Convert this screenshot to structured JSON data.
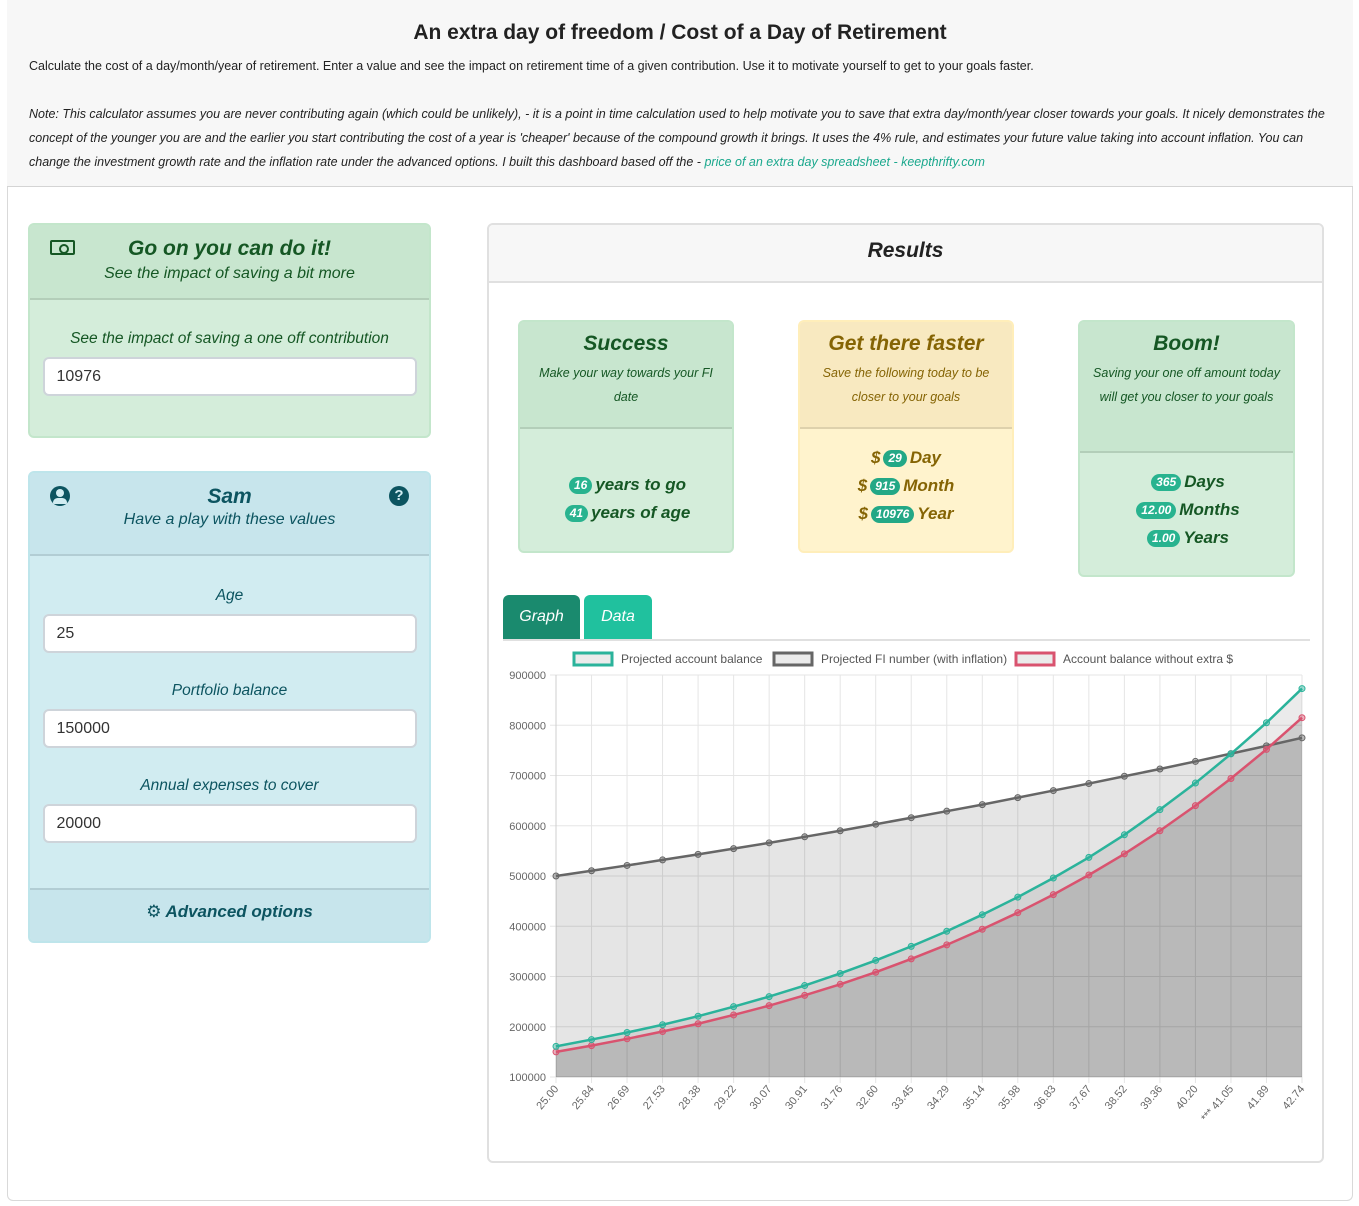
{
  "header": {
    "title": "An extra day of freedom / Cost of a Day of Retirement",
    "intro": "Calculate the cost of a day/month/year of retirement. Enter a value and see the impact on retirement time of a given contribution. Use it to motivate yourself to get to your goals faster.",
    "note": "Note: This calculator assumes you are never contributing again (which could be unlikely), - it is a point in time calculation used to help motivate you to save that extra day/month/year closer towards your goals. It nicely demonstrates the concept of the younger you are and the earlier you start contributing the cost of a year is 'cheaper' because of the compound growth it brings. It uses the 4% rule, and estimates your future value taking into account inflation. You can change the investment growth rate and the inflation rate under the advanced options. I built this dashboard based off the - ",
    "link_text": "price of an extra day spreadsheet - keepthrifty.com"
  },
  "contribution_card": {
    "title": "Go on you can do it!",
    "subtitle": "See the impact of saving a bit more",
    "field_label": "See the impact of saving a one off contribution",
    "field_value": "10976",
    "icon": "money-bill-icon"
  },
  "profile_card": {
    "title": "Sam",
    "subtitle": "Have a play with these values",
    "age_label": "Age",
    "age_value": "25",
    "portfolio_label": "Portfolio balance",
    "portfolio_value": "150000",
    "expenses_label": "Annual expenses to cover",
    "expenses_value": "20000",
    "advanced_label": "Advanced options",
    "help_glyph": "?"
  },
  "results": {
    "title": "Results",
    "success": {
      "title": "Success",
      "subtitle": "Make your way towards your FI date",
      "years_to_go": "16",
      "years_to_go_label": "years to go",
      "years_of_age": "41",
      "years_of_age_label": "years of age"
    },
    "faster": {
      "title": "Get there faster",
      "subtitle": "Save the following today to be closer to your goals",
      "currency": "$",
      "day": "29",
      "day_label": "Day",
      "month": "915",
      "month_label": "Month",
      "year": "10976",
      "year_label": "Year"
    },
    "boom": {
      "title": "Boom!",
      "subtitle": "Saving your one off amount today will get you closer to your goals",
      "days": "365",
      "days_label": "Days",
      "months": "12.00",
      "months_label": "Months",
      "years": "1.00",
      "years_label": "Years"
    },
    "tabs": {
      "graph": "Graph",
      "data": "Data"
    }
  },
  "colors": {
    "projected": "#2bb39b",
    "fi": "#666666",
    "without": "#d9536f"
  },
  "chart_data": {
    "type": "line",
    "x": [
      "25.00",
      "25.84",
      "26.69",
      "27.53",
      "28.38",
      "29.22",
      "30.07",
      "30.91",
      "31.76",
      "32.60",
      "33.45",
      "34.29",
      "35.14",
      "35.98",
      "36.83",
      "37.67",
      "38.52",
      "39.36",
      "40.20",
      "*** 41.05",
      "41.89",
      "42.74"
    ],
    "series": [
      {
        "name": "Projected account balance",
        "values": [
          160976,
          174500,
          188500,
          204000,
          221000,
          240000,
          260000,
          282000,
          306000,
          332000,
          360000,
          390000,
          423000,
          458000,
          496000,
          537000,
          582000,
          632000,
          685000,
          743000,
          805000,
          873000
        ]
      },
      {
        "name": "Projected FI number (with inflation)",
        "values": [
          500000,
          510500,
          521000,
          532000,
          543000,
          554500,
          566000,
          578000,
          590000,
          603000,
          616000,
          629000,
          642000,
          656000,
          670000,
          684000,
          698500,
          713000,
          728000,
          743500,
          759000,
          775000
        ]
      },
      {
        "name": "Account balance without extra $",
        "values": [
          150000,
          162500,
          176000,
          190500,
          206000,
          223500,
          242000,
          262500,
          284500,
          308500,
          335000,
          363000,
          394000,
          427000,
          463000,
          502000,
          544000,
          590000,
          640000,
          694000,
          752000,
          815000
        ]
      }
    ],
    "yticks": [
      "900000",
      "800000",
      "700000",
      "600000",
      "500000",
      "400000",
      "300000",
      "200000",
      "100000"
    ],
    "ylim": [
      100000,
      900000
    ],
    "legend": "top",
    "grid": true
  }
}
